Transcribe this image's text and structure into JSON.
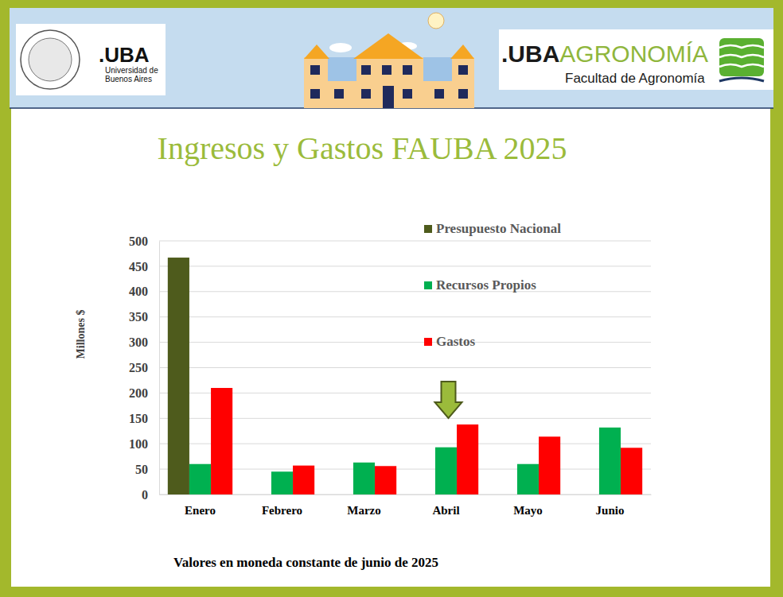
{
  "header": {
    "uba": {
      "acronym": ".UBA",
      "name": [
        "Universidad de",
        "Buenos Aires"
      ]
    },
    "agronomia": {
      "acronym": ".UBA",
      "brand": "AGRONOMÍA",
      "name": "Facultad de Agronomía"
    }
  },
  "chart_data": {
    "type": "bar",
    "title": "Ingresos y Gastos FAUBA 2025",
    "y_label": "Millones $",
    "footnote": "Valores en moneda constante de junio de 2025",
    "categories": [
      "Enero",
      "Febrero",
      "Marzo",
      "Abril",
      "Mayo",
      "Junio"
    ],
    "series": [
      {
        "name": "Presupuesto Nacional",
        "color": "#4e5b1c",
        "values": [
          467,
          null,
          null,
          null,
          null,
          null
        ]
      },
      {
        "name": "Recursos Propios",
        "color": "#00b050",
        "values": [
          60,
          45,
          63,
          93,
          60,
          132
        ]
      },
      {
        "name": "Gastos",
        "color": "#ff0000",
        "values": [
          210,
          57,
          56,
          138,
          114,
          92
        ]
      }
    ],
    "ylim": [
      0,
      500
    ],
    "yticks": [
      0,
      50,
      100,
      150,
      200,
      250,
      300,
      350,
      400,
      450,
      500
    ],
    "grid": true,
    "legend": "top-right"
  }
}
